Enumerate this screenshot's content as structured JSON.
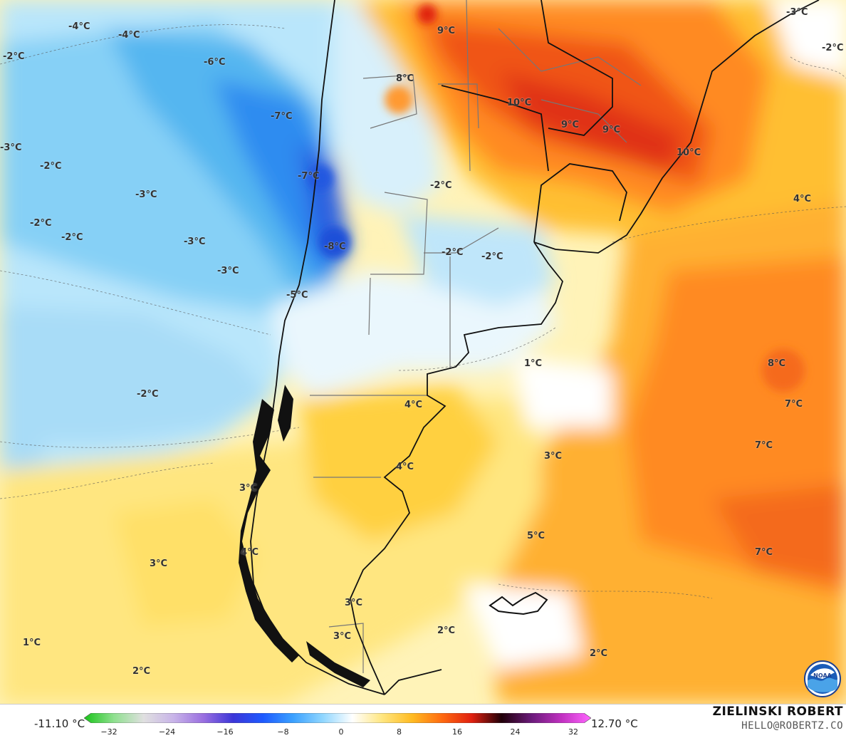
{
  "map": {
    "labels": [
      {
        "text": "-4°C"
      },
      {
        "text": "-4°C"
      },
      {
        "text": "-2°C"
      },
      {
        "text": "-6°C"
      },
      {
        "text": "-7°C"
      },
      {
        "text": "-3°C"
      },
      {
        "text": "-2°C"
      },
      {
        "text": "-7°C"
      },
      {
        "text": "-3°C"
      },
      {
        "text": "-2°C"
      },
      {
        "text": "-2°C"
      },
      {
        "text": "-3°C"
      },
      {
        "text": "-8°C"
      },
      {
        "text": "-3°C"
      },
      {
        "text": "-5°C"
      },
      {
        "text": "-2°C"
      },
      {
        "text": "-2°C"
      },
      {
        "text": "-2°C"
      },
      {
        "text": "-2°C"
      },
      {
        "text": "-3°C"
      },
      {
        "text": "-2°C"
      },
      {
        "text": "9°C"
      },
      {
        "text": "8°C"
      },
      {
        "text": "10°C"
      },
      {
        "text": "9°C"
      },
      {
        "text": "9°C"
      },
      {
        "text": "10°C"
      },
      {
        "text": "4°C"
      },
      {
        "text": "1°C"
      },
      {
        "text": "8°C"
      },
      {
        "text": "7°C"
      },
      {
        "text": "4°C"
      },
      {
        "text": "7°C"
      },
      {
        "text": "3°C"
      },
      {
        "text": "4°C"
      },
      {
        "text": "3°C"
      },
      {
        "text": "5°C"
      },
      {
        "text": "4°C"
      },
      {
        "text": "7°C"
      },
      {
        "text": "3°C"
      },
      {
        "text": "3°C"
      },
      {
        "text": "2°C"
      },
      {
        "text": "3°C"
      },
      {
        "text": "1°C"
      },
      {
        "text": "2°C"
      },
      {
        "text": "2°C"
      }
    ]
  },
  "legend": {
    "min_value": "-11.10 °C",
    "max_value": "12.70 °C",
    "ticks": [
      "−32",
      "−24",
      "−16",
      "−8",
      "0",
      "8",
      "16",
      "24",
      "32"
    ],
    "colors": [
      "#19c419",
      "#8fe08f",
      "#e0e0e0",
      "#c8b4e8",
      "#9a6fe0",
      "#3c36d8",
      "#1e5aff",
      "#3aa0ff",
      "#8fd6ff",
      "#ffffff",
      "#ffe680",
      "#ffbb22",
      "#ff6a10",
      "#e02010",
      "#200008",
      "#6a1a7a",
      "#c030c0",
      "#ff66ff"
    ]
  },
  "credits": {
    "author": "ZIELINSKI ROBERT",
    "email": "HELLO@ROBERTZ.CO",
    "logo": "noaa-logo"
  }
}
